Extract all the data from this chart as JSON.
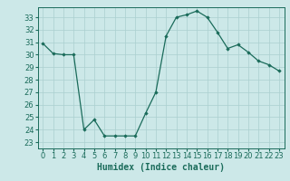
{
  "x": [
    0,
    1,
    2,
    3,
    4,
    5,
    6,
    7,
    8,
    9,
    10,
    11,
    12,
    13,
    14,
    15,
    16,
    17,
    18,
    19,
    20,
    21,
    22,
    23
  ],
  "y": [
    30.9,
    30.1,
    30.0,
    30.0,
    24.0,
    24.8,
    23.5,
    23.5,
    23.5,
    23.5,
    25.3,
    27.0,
    31.5,
    33.0,
    33.2,
    33.5,
    33.0,
    31.8,
    30.5,
    30.8,
    30.2,
    29.5,
    29.2,
    28.7
  ],
  "line_color": "#1a6b5a",
  "marker": "D",
  "marker_size": 1.8,
  "bg_color": "#cce8e8",
  "grid_color": "#aacfcf",
  "tick_color": "#1a6b5a",
  "xlabel": "Humidex (Indice chaleur)",
  "ylim": [
    22.5,
    33.8
  ],
  "xlim": [
    -0.5,
    23.5
  ],
  "yticks": [
    23,
    24,
    25,
    26,
    27,
    28,
    29,
    30,
    31,
    32,
    33
  ],
  "xticks": [
    0,
    1,
    2,
    3,
    4,
    5,
    6,
    7,
    8,
    9,
    10,
    11,
    12,
    13,
    14,
    15,
    16,
    17,
    18,
    19,
    20,
    21,
    22,
    23
  ],
  "xlabel_fontsize": 7,
  "tick_fontsize": 6
}
